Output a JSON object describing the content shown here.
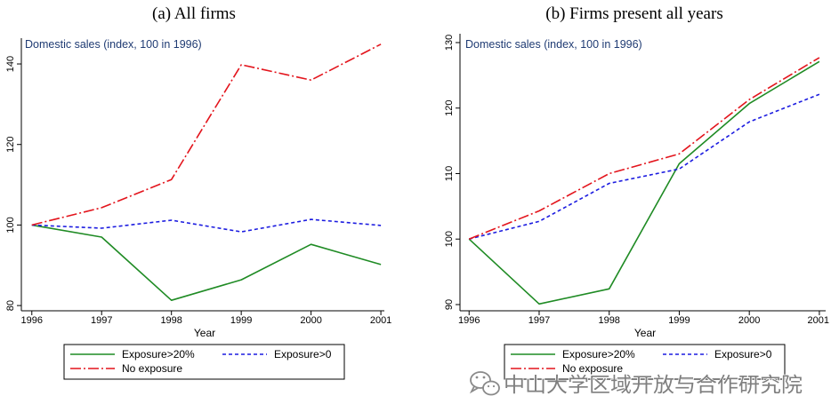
{
  "colors": {
    "axis_title": "#1f3b73"
  },
  "chart_data": [
    {
      "type": "line",
      "title": "(a) All firms",
      "ylabel": "Domestic sales (index, 100 in 1996)",
      "xlabel": "Year",
      "x": [
        1996,
        1997,
        1998,
        1999,
        2000,
        2001
      ],
      "xlim": [
        1995.85,
        2001.05
      ],
      "yticks": [
        80,
        100,
        120,
        140
      ],
      "ylim": [
        78.7,
        146.4
      ],
      "grid": false,
      "legend_position": "bottom",
      "series": [
        {
          "name": "Exposure>20%",
          "color": "#1f8b24",
          "line_style": "solid",
          "values": [
            100,
            97.0,
            81.3,
            86.4,
            95.2,
            90.2
          ]
        },
        {
          "name": "Exposure>0",
          "color": "#1c1ce0",
          "line_style": "dashed",
          "values": [
            100,
            99.2,
            101.2,
            98.3,
            101.4,
            99.9
          ]
        },
        {
          "name": "No exposure",
          "color": "#e3141c",
          "line_style": "dash-dot",
          "values": [
            100,
            104.3,
            111.3,
            139.8,
            136.0,
            144.9
          ]
        }
      ]
    },
    {
      "type": "line",
      "title": "(b) Firms present all years",
      "ylabel": "Domestic sales (index, 100 in 1996)",
      "xlabel": "Year",
      "x": [
        1996,
        1997,
        1998,
        1999,
        2000,
        2001
      ],
      "xlim": [
        1995.87,
        2001.09
      ],
      "yticks": [
        90,
        100,
        110,
        120,
        130
      ],
      "ylim": [
        89.05,
        131.35
      ],
      "grid": false,
      "legend_position": "bottom",
      "series": [
        {
          "name": "Exposure>20%",
          "color": "#1f8b24",
          "line_style": "solid",
          "values": [
            100,
            90.1,
            92.4,
            111.5,
            120.7,
            127.1
          ]
        },
        {
          "name": "Exposure>0",
          "color": "#1c1ce0",
          "line_style": "dashed",
          "values": [
            100,
            102.7,
            108.5,
            110.7,
            117.9,
            122.1
          ]
        },
        {
          "name": "No exposure",
          "color": "#e3141c",
          "line_style": "dash-dot",
          "values": [
            100,
            104.3,
            110.0,
            113.0,
            121.3,
            127.7
          ]
        }
      ]
    }
  ],
  "watermark": {
    "icon": "wechat-icon",
    "text": "中山大学区域开放与合作研究院"
  }
}
